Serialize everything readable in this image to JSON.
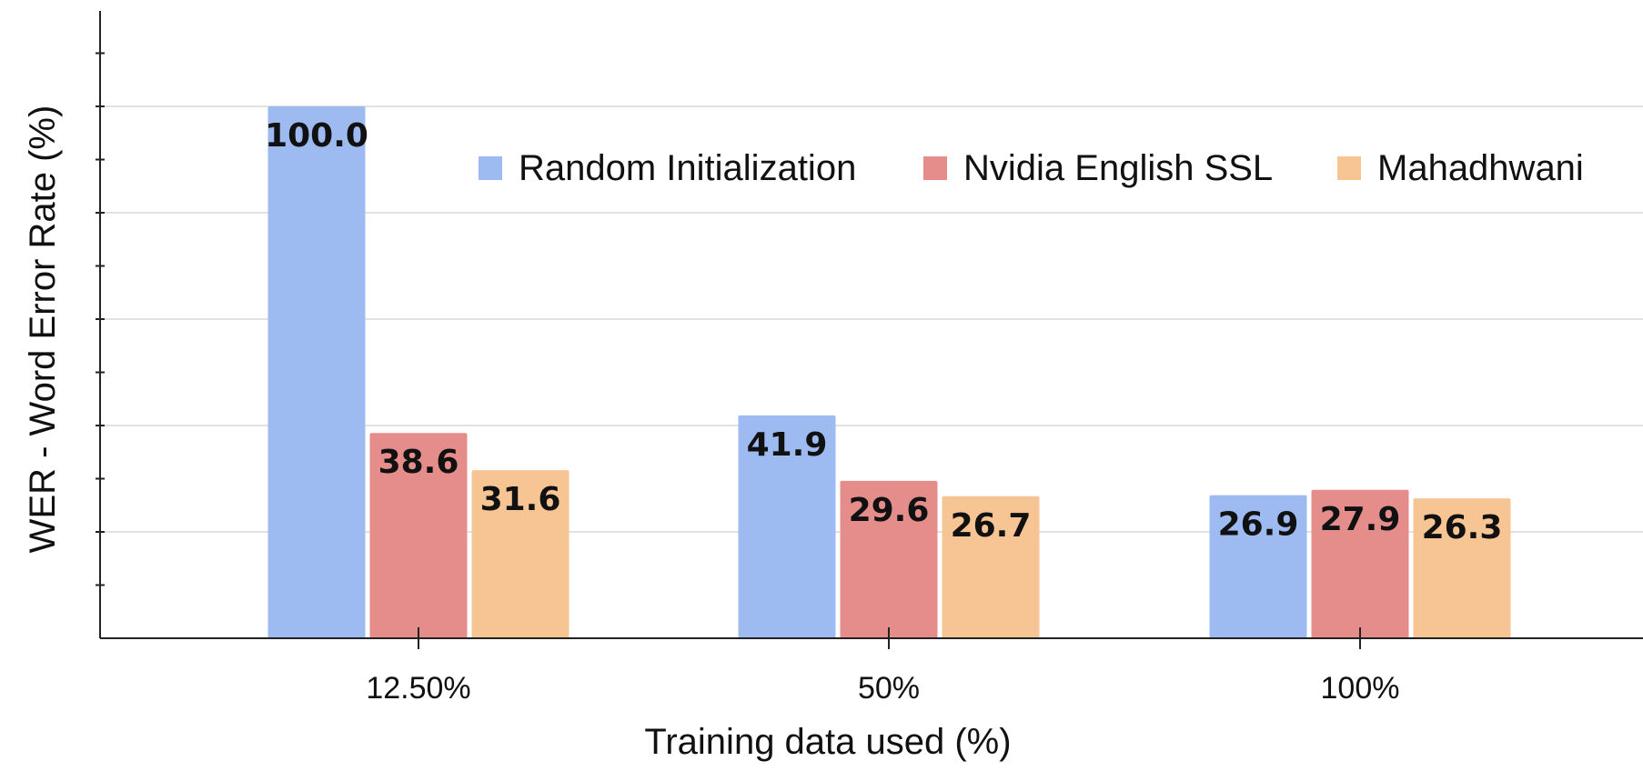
{
  "chart_data": {
    "type": "bar",
    "title": "",
    "xlabel": "Training data used (%)",
    "ylabel": "WER - Word Error Rate (%)",
    "categories": [
      "12.50%",
      "50%",
      "100%"
    ],
    "series": [
      {
        "name": "Random Initialization",
        "color": "#9dbbf0",
        "values": [
          100.0,
          41.9,
          26.9
        ],
        "labels": [
          "100.0",
          "41.9",
          "26.9"
        ]
      },
      {
        "name": "Nvidia English SSL",
        "color": "#e48d8b",
        "values": [
          38.6,
          29.6,
          27.9
        ],
        "labels": [
          "38.6",
          "29.6",
          "27.9"
        ]
      },
      {
        "name": "Mahadhwani",
        "color": "#f7c493",
        "values": [
          31.6,
          26.7,
          26.3
        ],
        "labels": [
          "31.6",
          "26.7",
          "26.3"
        ]
      }
    ],
    "ylim": [
      0,
      120
    ],
    "grid": true,
    "legend": "top-right"
  }
}
